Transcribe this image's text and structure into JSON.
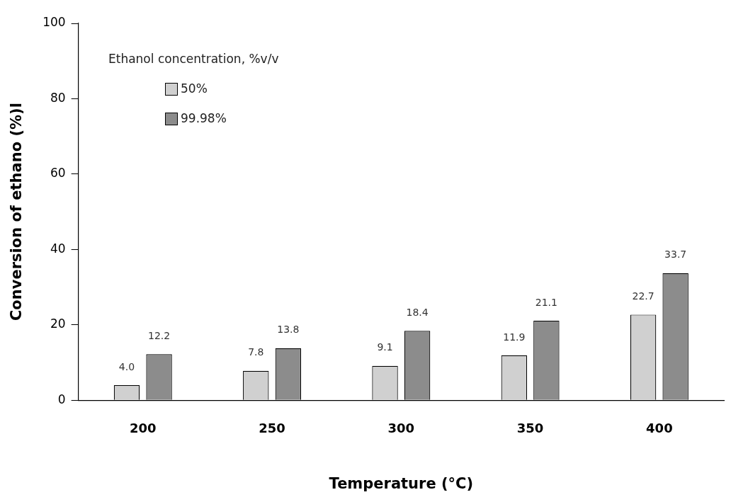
{
  "chart_data": {
    "type": "bar",
    "xlabel": "Temperature (°C)",
    "ylabel": "Conversion of ethano (%)l",
    "legend_title": "Ethanol concentration, %v/v",
    "categories": [
      "200",
      "250",
      "300",
      "350",
      "400"
    ],
    "series": [
      {
        "name": "50%",
        "color": "#d0d0d0",
        "values": [
          4.0,
          7.8,
          9.1,
          11.9,
          22.7
        ],
        "value_labels": [
          "4.0",
          "7.8",
          "9.1",
          "11.9",
          "22.7"
        ]
      },
      {
        "name": "99.98%",
        "color": "#8c8c8c",
        "values": [
          12.2,
          13.8,
          18.4,
          21.1,
          33.7
        ],
        "value_labels": [
          "12.2",
          "13.8",
          "18.4",
          "21.1",
          "33.7"
        ]
      }
    ],
    "ylim": [
      0,
      100
    ],
    "yticks": [
      0,
      20,
      40,
      60,
      80,
      100
    ],
    "grid": false,
    "legend": "top left"
  }
}
